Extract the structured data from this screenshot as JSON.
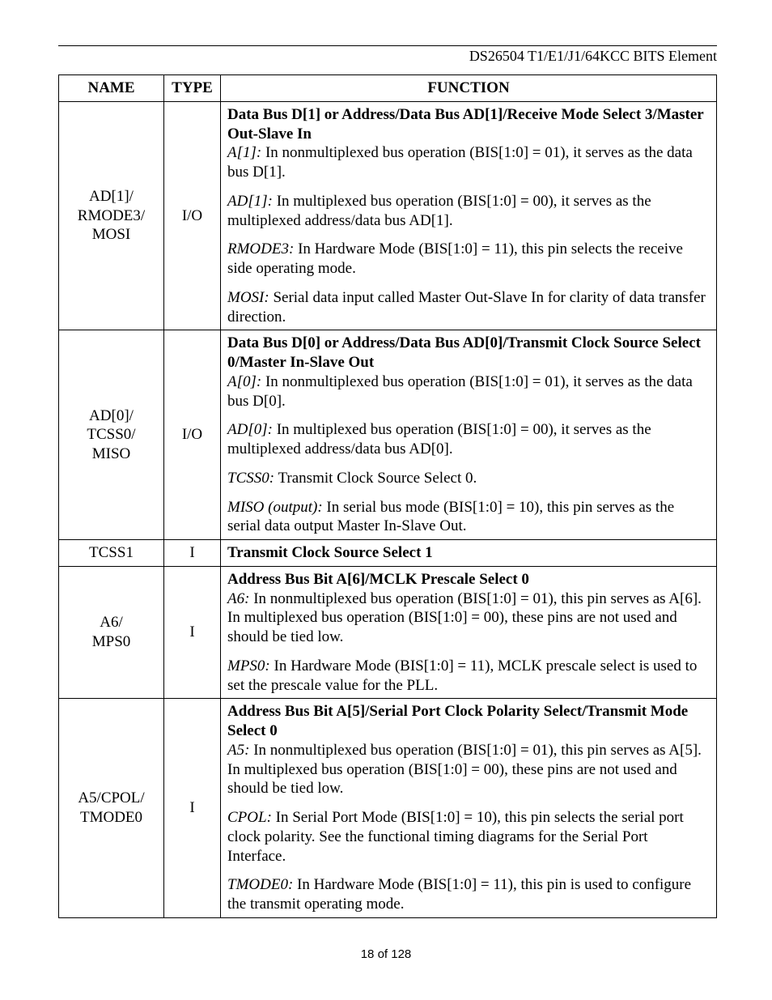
{
  "header": {
    "title": "DS26504 T1/E1/J1/64KCC BITS Element"
  },
  "table": {
    "columns": [
      "NAME",
      "TYPE",
      "FUNCTION"
    ],
    "rows": [
      {
        "name": "AD[1]/\nRMODE3/\nMOSI",
        "type": "I/O",
        "func": {
          "bold_lead": "Data Bus D[1] or Address/Data Bus AD[1]/Receive Mode Select 3/Master Out-Slave In",
          "paras": [
            {
              "label": "A[1]:",
              "text": " In nonmultiplexed bus operation (BIS[1:0] = 01), it serves as the data bus D[1]."
            },
            {
              "label": "AD[1]:",
              "text": " In multiplexed bus operation (BIS[1:0]  = 00), it serves as the multiplexed address/data bus AD[1]."
            },
            {
              "label": "RMODE3:",
              "text": " In Hardware Mode (BIS[1:0] = 11), this pin selects the receive side operating mode."
            },
            {
              "label": "MOSI:",
              "text": " Serial data input called Master Out-Slave In for clarity of data transfer direction."
            }
          ]
        }
      },
      {
        "name": "AD[0]/\nTCSS0/\nMISO",
        "type": "I/O",
        "func": {
          "bold_lead": "Data Bus D[0] or Address/Data Bus AD[0]/Transmit Clock Source Select 0/Master In-Slave Out",
          "paras": [
            {
              "label": "A[0]:",
              "text": " In nonmultiplexed bus operation (BIS[1:0] = 01), it serves as the data bus D[0]."
            },
            {
              "label": "AD[0]:",
              "text": " In multiplexed bus operation (BIS[1:0]  = 00), it serves as the multiplexed address/data bus AD[0]."
            },
            {
              "label": "TCSS0:",
              "text": " Transmit Clock Source Select 0."
            },
            {
              "label": "MISO (output):",
              "text": " In serial bus mode (BIS[1:0] = 10), this pin serves as the serial data output Master In-Slave Out."
            }
          ]
        }
      },
      {
        "name": "TCSS1",
        "type": "I",
        "func": {
          "bold_lead": "Transmit Clock Source Select 1",
          "paras": []
        }
      },
      {
        "name": "A6/\nMPS0",
        "type": "I",
        "func": {
          "bold_lead": "Address Bus Bit A[6]/MCLK Prescale Select 0",
          "paras": [
            {
              "label": "A6:",
              "text": " In nonmultiplexed bus operation (BIS[1:0] = 01), this pin serves as A[6]. In multiplexed bus operation (BIS[1:0] = 00), these pins are not used and should be tied low."
            },
            {
              "label": "MPS0:",
              "text": " In Hardware Mode (BIS[1:0] = 11), MCLK prescale select is used to set the prescale value for the PLL."
            }
          ]
        }
      },
      {
        "name": "A5/CPOL/\nTMODE0",
        "type": "I",
        "func": {
          "bold_lead": "Address Bus Bit A[5]/Serial Port Clock Polarity Select/Transmit Mode Select 0",
          "paras": [
            {
              "label": "A5:",
              "text": " In nonmultiplexed bus operation (BIS[1:0] = 01), this pin serves as A[5]. In multiplexed bus operation (BIS[1:0] = 00), these pins are not used and should be tied low."
            },
            {
              "label": "CPOL:",
              "text": " In Serial Port Mode (BIS[1:0] = 10), this pin selects the serial port clock polarity. See the functional timing diagrams for the Serial Port Interface."
            },
            {
              "label": "TMODE0:",
              "text": " In Hardware Mode (BIS[1:0] = 11), this pin is used to configure the transmit operating mode."
            }
          ]
        }
      }
    ]
  },
  "footer": {
    "text": "18 of 128"
  }
}
